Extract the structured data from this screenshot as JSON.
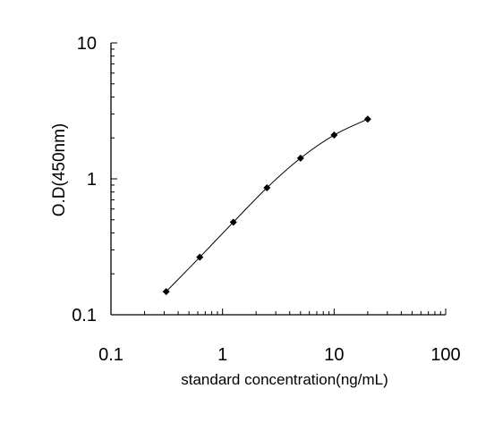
{
  "chart_data": {
    "type": "scatter",
    "title": "",
    "xlabel": "standard concentration(ng/mL)",
    "ylabel": "O.D(450nm)",
    "xscale": "log",
    "yscale": "log",
    "xlim": [
      0.1,
      100
    ],
    "ylim": [
      0.1,
      10
    ],
    "x_ticks": [
      "0.1",
      "1",
      "10",
      "100"
    ],
    "y_ticks": [
      "0.1",
      "1",
      "10"
    ],
    "grid": false,
    "legend": "none",
    "series": [
      {
        "x": [
          0.3125,
          0.625,
          1.25,
          2.5,
          5,
          10,
          20
        ],
        "y": [
          0.148,
          0.265,
          0.48,
          0.86,
          1.42,
          2.1,
          2.75
        ],
        "marker": "diamond",
        "line": "smooth"
      }
    ],
    "colors": {
      "line": "#000000",
      "marker": "#000000",
      "axis": "#000000",
      "background": "#ffffff"
    }
  }
}
